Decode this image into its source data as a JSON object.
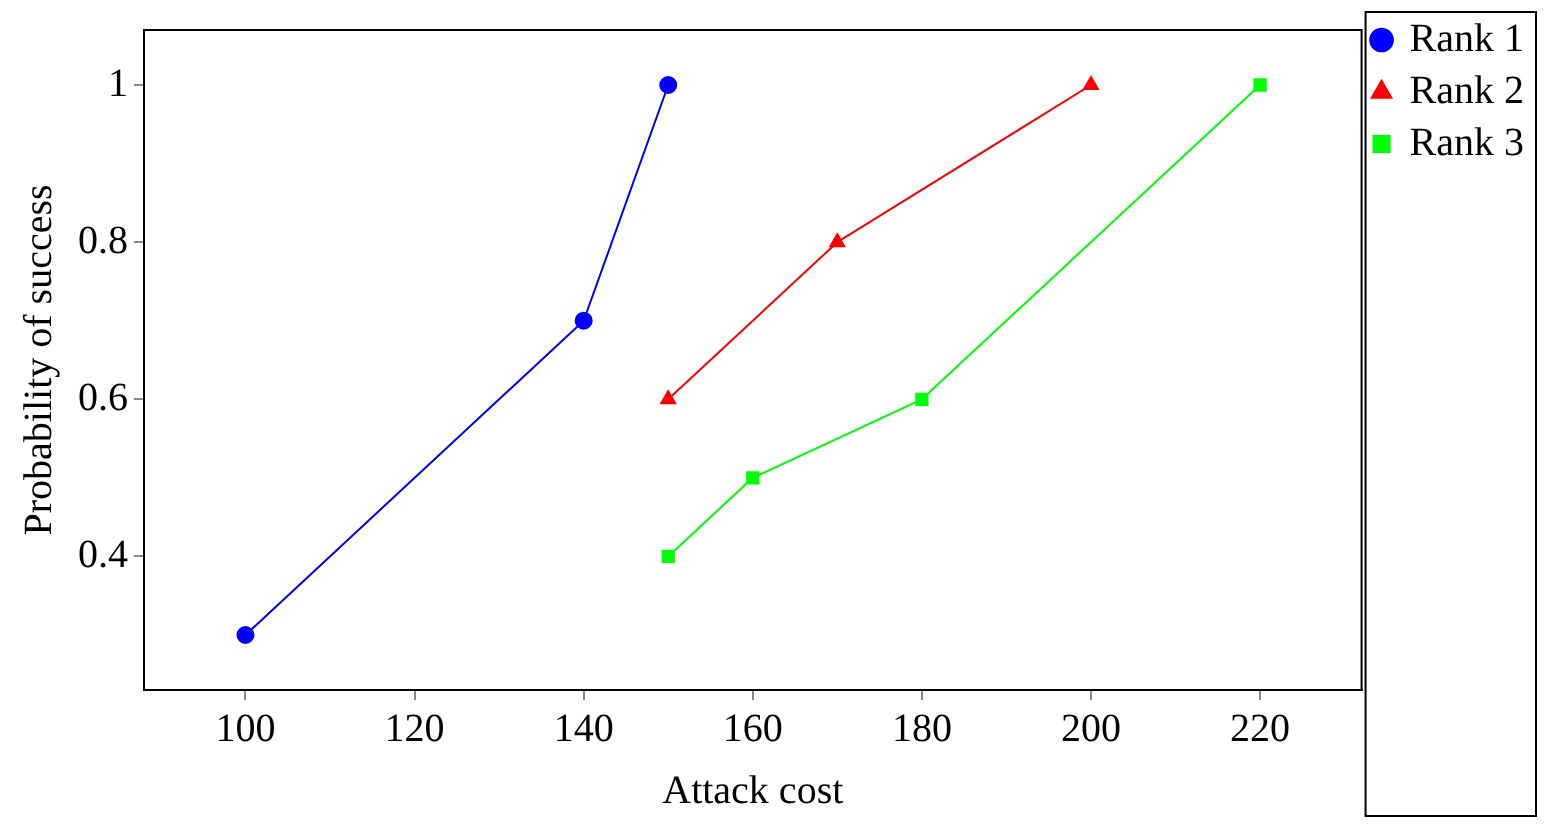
{
  "chart_data": {
    "type": "line",
    "xlabel": "Attack cost",
    "ylabel": "Probability of success",
    "xlim": [
      88,
      232
    ],
    "xticks": [
      100,
      120,
      140,
      160,
      180,
      200,
      220
    ],
    "ylim": [
      0.23,
      1.07
    ],
    "yticks": [
      0.4,
      0.6,
      0.8,
      1
    ],
    "grid": false,
    "legend": "top right",
    "line_style": "solid",
    "series": [
      {
        "name": "Rank 1",
        "color": "#0000ff",
        "marker": "circle",
        "x": [
          100,
          140,
          150
        ],
        "values": [
          0.3,
          0.7,
          1
        ]
      },
      {
        "name": "Rank 2",
        "color": "#ff0000",
        "marker": "triangle",
        "x": [
          150,
          170,
          200
        ],
        "values": [
          0.6,
          0.8,
          1
        ]
      },
      {
        "name": "Rank 3",
        "color": "#00ff00",
        "marker": "square",
        "x": [
          150,
          160,
          180,
          220
        ],
        "values": [
          0.4,
          0.5,
          0.6,
          1
        ]
      }
    ]
  }
}
